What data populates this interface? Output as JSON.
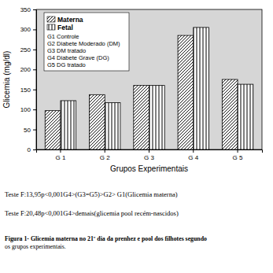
{
  "chart_data": {
    "type": "bar",
    "caption": [
      "Figura 1- Glicemia materna no 21º dia da prenhez e pool dos filhotes segundo",
      "os grupos experimentais."
    ],
    "y_label": "Glicemia (mg/dl)",
    "x_label": "Grupos Experimentais",
    "categories": [
      "G 1",
      "G 2",
      "G 3",
      "G 4",
      "G 5"
    ],
    "series": [
      {
        "name": "Materna",
        "color": "#000000",
        "values": [
          97,
          137,
          160,
          285,
          175
        ]
      },
      {
        "name": "Fetal",
        "color": "#000000",
        "values": [
          122,
          117,
          160,
          305,
          163
        ]
      }
    ],
    "ylim": [
      0,
      350
    ],
    "yticks": [
      0,
      50,
      100,
      150,
      200,
      250,
      300,
      350
    ],
    "grid": false,
    "legend": "upper left",
    "group_descriptions": [
      "G1 Controle",
      "G2 Diabete Moderado (DM)",
      "G3 DM tratado",
      "G4 Diabete Grave (DG)",
      "G5 DG tratado"
    ],
    "annotations": [
      "Teste F:13,95p<0,001G4>(G3=G5)>G2> G1(Glicemia materna)",
      "Teste F:20,48p<0,001G4>demais(glicemia pool recém-nascidos)"
    ]
  }
}
